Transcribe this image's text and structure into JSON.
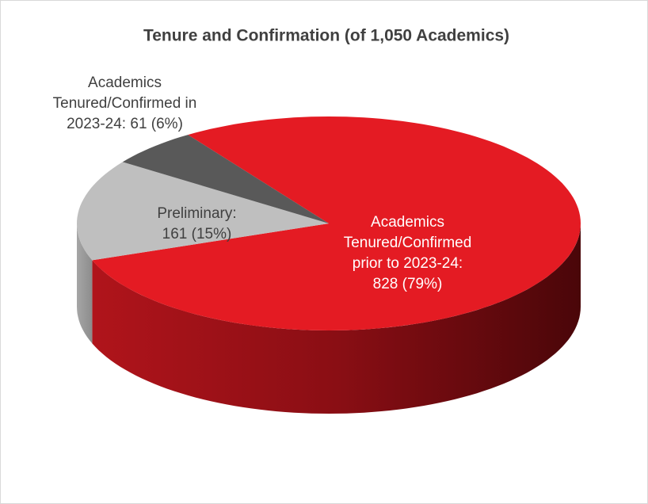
{
  "chart_data": {
    "type": "pie",
    "title": "Tenure and Confirmation (of 1,050 Academics)",
    "categories": [
      "Academics Tenured/Confirmed prior to 2023-24:",
      "Preliminary:",
      "Academics Tenured/Confirmed in 2023-24:"
    ],
    "values": [
      828,
      161,
      61
    ],
    "value_labels": [
      "828 (79%)",
      "161 (15%)",
      "61 (6%)"
    ],
    "colors": [
      "#e41b23",
      "#bfbfbf",
      "#595959"
    ]
  }
}
